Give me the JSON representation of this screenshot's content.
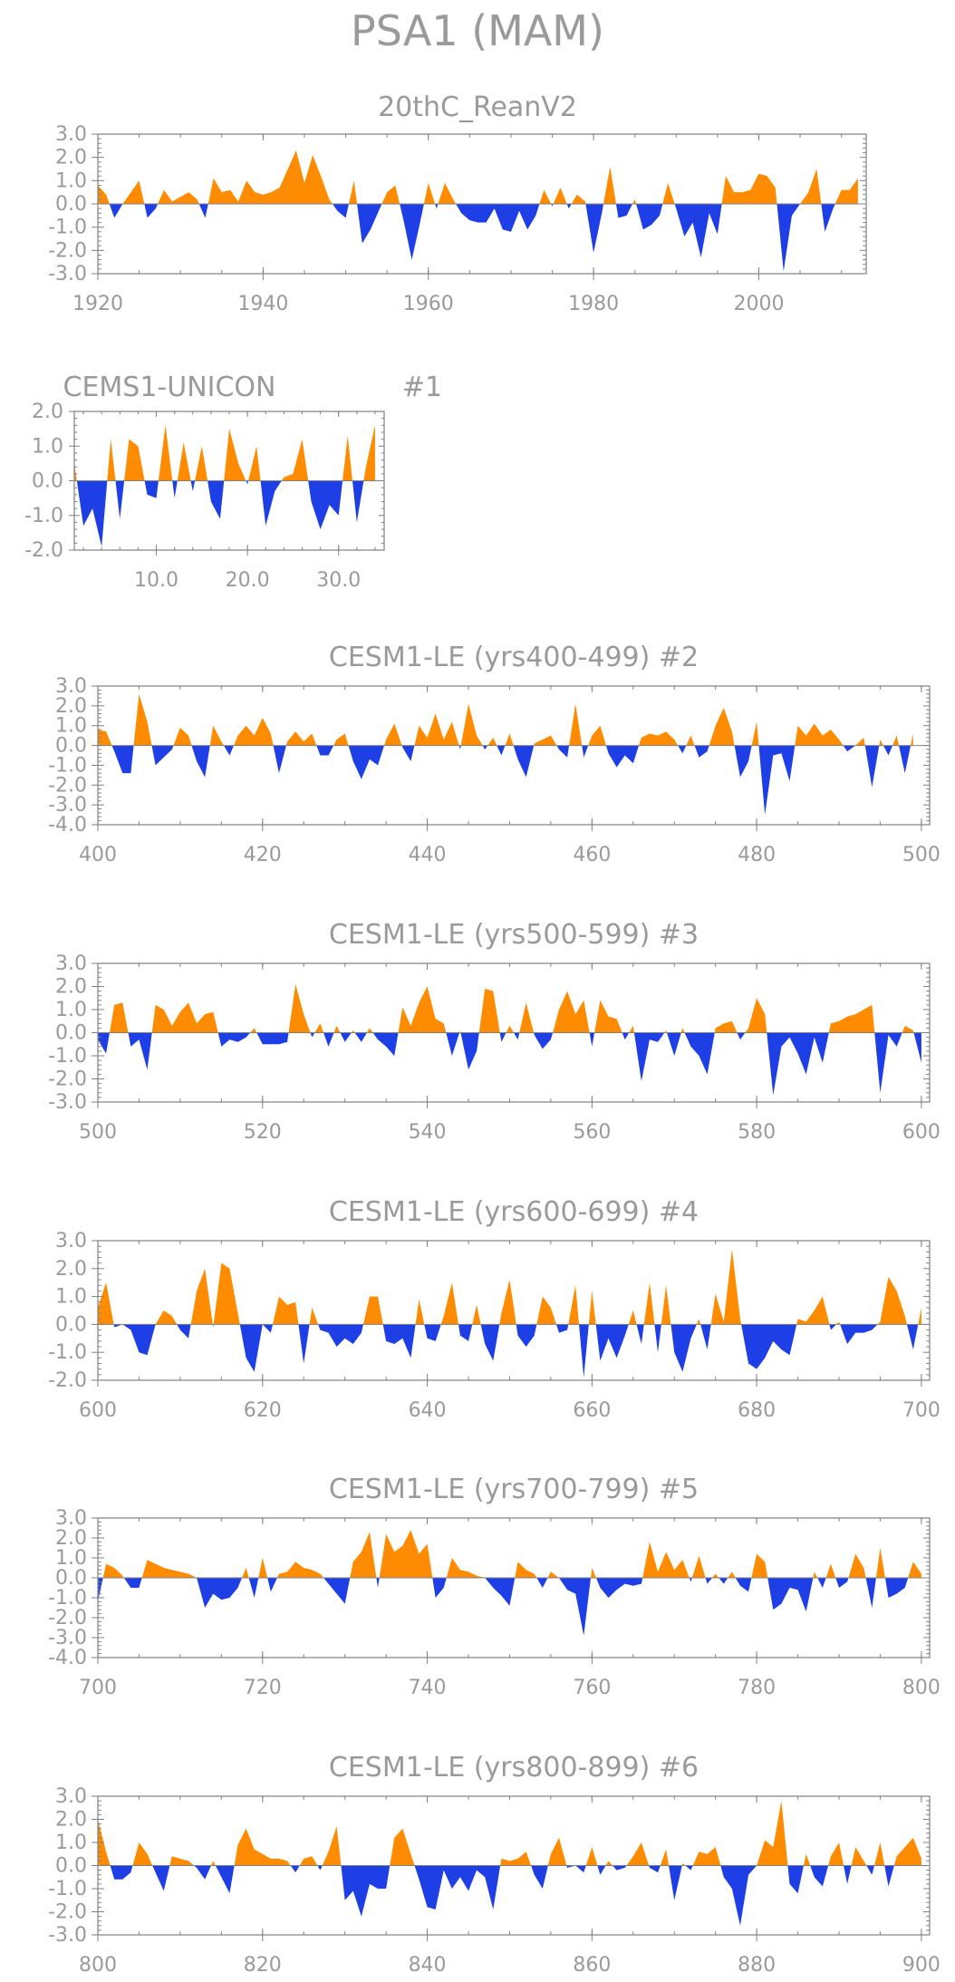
{
  "figure_title": "PSA1 (MAM)",
  "colors": {
    "positive": "#ff8c00",
    "negative": "#1e3ee6",
    "text": "#9a9a9a",
    "axis": "#808080"
  },
  "chart_data": [
    {
      "type": "area",
      "title": "20thC_ReanV2",
      "member_label": "",
      "xlim": [
        1920,
        2013
      ],
      "ylim": [
        -3,
        3
      ],
      "yticks": [
        3,
        2,
        1,
        0,
        -1,
        -2,
        -3
      ],
      "ytick_labels": [
        "3.0",
        "2.0",
        "1.0",
        "0.0",
        "-1.0",
        "-2.0",
        "-3.0"
      ],
      "xticks": [
        1920,
        1940,
        1960,
        1980,
        2000
      ],
      "xtick_labels": [
        "1920",
        "1940",
        "1960",
        "1980",
        "2000"
      ],
      "x_start": 1920,
      "values": [
        0.8,
        0.4,
        -0.6,
        0.0,
        0.5,
        1.0,
        -0.6,
        -0.2,
        0.6,
        0.1,
        0.3,
        0.5,
        0.2,
        -0.6,
        1.1,
        0.5,
        0.6,
        0.1,
        1.0,
        0.5,
        0.4,
        0.5,
        0.7,
        1.5,
        2.3,
        0.9,
        2.1,
        1.2,
        0.2,
        -0.3,
        -0.6,
        1.0,
        -1.7,
        -1.1,
        -0.3,
        0.5,
        0.8,
        -0.7,
        -2.4,
        -0.8,
        0.9,
        -0.2,
        0.9,
        0.2,
        -0.4,
        -0.7,
        -0.8,
        -0.8,
        -0.2,
        -1.1,
        -1.2,
        -0.3,
        -1.1,
        -0.5,
        0.6,
        -0.1,
        0.7,
        -0.2,
        0.4,
        0.1,
        -2.1,
        -0.4,
        1.6,
        -0.6,
        -0.5,
        0.2,
        -1.1,
        -0.9,
        -0.5,
        0.9,
        -0.2,
        -1.4,
        -0.8,
        -2.3,
        -0.4,
        -1.3,
        1.2,
        0.5,
        0.5,
        0.6,
        1.3,
        1.2,
        0.7,
        -2.9,
        -0.5,
        0.0,
        0.5,
        1.5,
        -1.2,
        -0.2,
        0.6,
        0.6,
        1.1
      ]
    },
    {
      "type": "area",
      "title": "CEMS1-UNICON",
      "member_label": "#1",
      "xlim": [
        1,
        35
      ],
      "ylim": [
        -2,
        2
      ],
      "yticks": [
        2,
        1,
        0,
        -1,
        -2
      ],
      "ytick_labels": [
        "2.0",
        "1.0",
        "0.0",
        "-1.0",
        "-2.0"
      ],
      "xticks": [
        10,
        20,
        30
      ],
      "xtick_labels": [
        "10.0",
        "20.0",
        "30.0"
      ],
      "x_start": 1,
      "values": [
        0.5,
        -1.3,
        -0.8,
        -1.9,
        1.2,
        -1.1,
        1.2,
        1.0,
        -0.4,
        -0.5,
        1.6,
        -0.5,
        1.1,
        -0.3,
        1.0,
        -0.6,
        -1.1,
        1.5,
        0.5,
        -0.1,
        1.0,
        -1.3,
        -0.3,
        0.1,
        0.2,
        1.2,
        -0.6,
        -1.4,
        -0.7,
        -1.0,
        1.3,
        -1.2,
        0.4,
        1.6
      ]
    },
    {
      "type": "area",
      "title": "CESM1-LE (yrs400-499)",
      "member_label": "#2",
      "xlim": [
        400,
        501
      ],
      "ylim": [
        -4,
        3
      ],
      "yticks": [
        3,
        2,
        1,
        0,
        -1,
        -2,
        -3,
        -4
      ],
      "ytick_labels": [
        "3.0",
        "2.0",
        "1.0",
        "0.0",
        "-1.0",
        "-2.0",
        "-3.0",
        "-4.0"
      ],
      "xticks": [
        400,
        420,
        440,
        460,
        480,
        500
      ],
      "xtick_labels": [
        "400",
        "420",
        "440",
        "460",
        "480",
        "500"
      ],
      "x_start": 400,
      "values": [
        0.8,
        0.7,
        -0.3,
        -1.4,
        -1.4,
        2.6,
        1.2,
        -1.0,
        -0.6,
        -0.2,
        0.9,
        0.5,
        -0.8,
        -1.6,
        1.0,
        0.2,
        -0.5,
        0.5,
        1.0,
        0.5,
        1.4,
        0.6,
        -1.4,
        0.2,
        0.7,
        0.2,
        0.6,
        -0.5,
        -0.5,
        0.3,
        0.6,
        -0.8,
        -1.7,
        -0.7,
        -1.0,
        0.3,
        1.1,
        -0.1,
        -0.8,
        1.0,
        0.4,
        1.6,
        0.3,
        1.2,
        -0.2,
        2.1,
        0.5,
        -0.2,
        0.4,
        -0.5,
        0.6,
        -0.7,
        -1.6,
        0.1,
        0.3,
        0.5,
        -0.2,
        -0.6,
        2.1,
        -0.6,
        0.5,
        1.0,
        -0.4,
        -1.1,
        -0.5,
        -0.9,
        0.4,
        0.6,
        0.5,
        0.7,
        0.3,
        -0.4,
        0.5,
        -0.6,
        -0.3,
        1.0,
        1.9,
        0.7,
        -1.6,
        -0.8,
        1.2,
        -3.5,
        -0.5,
        -0.4,
        -1.8,
        1.0,
        0.5,
        1.1,
        0.5,
        0.8,
        0.3,
        -0.3,
        0.0,
        0.4,
        -2.1,
        0.3,
        -0.5,
        0.5,
        -1.4,
        0.6
      ]
    },
    {
      "type": "area",
      "title": "CESM1-LE (yrs500-599)",
      "member_label": "#3",
      "xlim": [
        500,
        601
      ],
      "ylim": [
        -3,
        3
      ],
      "yticks": [
        3,
        2,
        1,
        0,
        -1,
        -2,
        -3
      ],
      "ytick_labels": [
        "3.0",
        "2.0",
        "1.0",
        "0.0",
        "-1.0",
        "-2.0",
        "-3.0"
      ],
      "xticks": [
        500,
        520,
        540,
        560,
        580,
        600
      ],
      "xtick_labels": [
        "500",
        "520",
        "540",
        "560",
        "580",
        "600"
      ],
      "x_start": 500,
      "values": [
        -0.3,
        -0.9,
        1.2,
        1.3,
        -0.6,
        -0.3,
        -1.6,
        1.2,
        1.0,
        0.3,
        0.9,
        1.3,
        0.4,
        0.8,
        0.9,
        -0.6,
        -0.3,
        -0.4,
        -0.2,
        0.2,
        -0.5,
        -0.5,
        -0.5,
        -0.4,
        2.1,
        0.8,
        -0.2,
        0.4,
        -0.6,
        0.3,
        -0.4,
        0.1,
        -0.4,
        0.2,
        -0.3,
        -0.6,
        -1.0,
        1.1,
        0.3,
        1.3,
        2.0,
        0.6,
        0.4,
        -1.0,
        0.1,
        -1.6,
        -0.8,
        1.9,
        1.8,
        -0.4,
        0.3,
        -0.3,
        1.3,
        -0.1,
        -0.7,
        -0.3,
        1.0,
        1.8,
        0.8,
        1.4,
        -0.6,
        1.4,
        0.7,
        0.6,
        -0.3,
        0.3,
        -2.1,
        -0.3,
        -0.4,
        0.1,
        -1.0,
        0.2,
        -0.6,
        -1.0,
        -1.8,
        0.2,
        0.4,
        0.5,
        -0.3,
        0.2,
        1.5,
        0.8,
        -2.7,
        -0.6,
        -0.2,
        -0.9,
        -1.8,
        -0.2,
        -1.3,
        0.4,
        0.5,
        0.7,
        0.8,
        1.0,
        1.2,
        -2.6,
        -0.1,
        -0.6,
        0.3,
        0.1,
        -1.3
      ]
    },
    {
      "type": "area",
      "title": "CESM1-LE (yrs600-699)",
      "member_label": "#4",
      "xlim": [
        600,
        701
      ],
      "ylim": [
        -2,
        3
      ],
      "yticks": [
        3,
        2,
        1,
        0,
        -1,
        -2
      ],
      "ytick_labels": [
        "3.0",
        "2.0",
        "1.0",
        "0.0",
        "-1.0",
        "-2.0"
      ],
      "xticks": [
        600,
        620,
        640,
        660,
        680,
        700
      ],
      "xtick_labels": [
        "600",
        "620",
        "640",
        "660",
        "680",
        "700"
      ],
      "x_start": 600,
      "values": [
        0.6,
        1.5,
        -0.1,
        0.0,
        -0.2,
        -1.0,
        -1.1,
        0.0,
        0.5,
        0.3,
        -0.2,
        -0.5,
        1.2,
        2.0,
        -0.1,
        2.2,
        2.0,
        0.4,
        -1.2,
        -1.7,
        0.0,
        -0.3,
        1.0,
        0.7,
        0.8,
        -1.4,
        0.6,
        -0.2,
        -0.3,
        -0.8,
        -0.5,
        -0.7,
        -0.3,
        1.0,
        1.0,
        -0.6,
        -0.7,
        -0.5,
        -1.2,
        0.9,
        -0.5,
        -0.6,
        0.3,
        1.5,
        -0.4,
        -0.6,
        0.7,
        -0.7,
        -1.3,
        0.4,
        1.6,
        -0.4,
        -0.8,
        -0.4,
        1.0,
        0.6,
        -0.3,
        -0.2,
        1.4,
        -1.9,
        1.2,
        -1.3,
        -0.5,
        -1.2,
        -0.4,
        0.5,
        -0.7,
        1.5,
        -1.0,
        1.4,
        -1.0,
        -1.7,
        -0.5,
        0.2,
        -0.9,
        1.1,
        0.1,
        2.7,
        0.2,
        -1.4,
        -1.6,
        -1.2,
        -0.6,
        -0.9,
        -1.1,
        0.2,
        0.1,
        0.5,
        1.0,
        -0.2,
        0.1,
        -0.7,
        -0.3,
        -0.3,
        -0.2,
        0.1,
        1.7,
        1.2,
        0.3,
        -0.9,
        0.6
      ]
    },
    {
      "type": "area",
      "title": "CESM1-LE (yrs700-799)",
      "member_label": "#5",
      "xlim": [
        700,
        801
      ],
      "ylim": [
        -4,
        3
      ],
      "yticks": [
        3,
        2,
        1,
        0,
        -1,
        -2,
        -3,
        -4
      ],
      "ytick_labels": [
        "3.0",
        "2.0",
        "1.0",
        "0.0",
        "-1.0",
        "-2.0",
        "-3.0",
        "-4.0"
      ],
      "xticks": [
        700,
        720,
        740,
        760,
        780,
        800
      ],
      "xtick_labels": [
        "700",
        "720",
        "740",
        "760",
        "780",
        "800"
      ],
      "x_start": 700,
      "values": [
        -1.2,
        0.7,
        0.5,
        0.1,
        -0.5,
        -0.5,
        0.9,
        0.7,
        0.5,
        0.4,
        0.3,
        0.2,
        0.0,
        -1.5,
        -0.8,
        -1.1,
        -1.0,
        -0.5,
        0.5,
        -1.0,
        1.0,
        -0.7,
        0.2,
        0.3,
        0.8,
        0.5,
        0.4,
        0.2,
        -0.3,
        -0.8,
        -1.3,
        0.8,
        1.3,
        2.3,
        -0.5,
        2.2,
        1.3,
        1.6,
        2.4,
        1.2,
        1.7,
        -1.0,
        -0.5,
        1.0,
        0.4,
        0.3,
        0.1,
        0.0,
        -0.5,
        -0.9,
        -1.4,
        0.8,
        0.4,
        0.2,
        -0.5,
        0.3,
        0.0,
        -0.6,
        -0.8,
        -2.9,
        0.5,
        -0.5,
        -1.0,
        -0.6,
        -0.3,
        -0.4,
        -0.3,
        1.8,
        0.3,
        1.3,
        0.4,
        0.9,
        -0.2,
        1.1,
        -0.3,
        0.2,
        -0.3,
        0.3,
        -0.4,
        -0.7,
        1.2,
        0.8,
        -1.6,
        -1.3,
        -0.5,
        -0.6,
        -1.7,
        0.3,
        -0.5,
        0.7,
        -0.5,
        -0.2,
        1.2,
        0.5,
        -1.5,
        1.5,
        -1.0,
        -0.8,
        -0.5,
        0.8,
        0.2
      ]
    },
    {
      "type": "area",
      "title": "CESM1-LE (yrs800-899)",
      "member_label": "#6",
      "xlim": [
        800,
        901
      ],
      "ylim": [
        -3,
        3
      ],
      "yticks": [
        3,
        2,
        1,
        0,
        -1,
        -2,
        -3
      ],
      "ytick_labels": [
        "3.0",
        "2.0",
        "1.0",
        "0.0",
        "-1.0",
        "-2.0",
        "-3.0"
      ],
      "xticks": [
        800,
        820,
        840,
        860,
        880,
        900
      ],
      "xtick_labels": [
        "800",
        "820",
        "840",
        "860",
        "880",
        "900"
      ],
      "x_start": 800,
      "values": [
        2.0,
        0.6,
        -0.6,
        -0.6,
        -0.3,
        1.0,
        0.5,
        -0.3,
        -1.1,
        0.4,
        0.3,
        0.2,
        -0.1,
        -0.6,
        0.2,
        -0.5,
        -1.2,
        0.9,
        1.6,
        0.7,
        0.5,
        0.3,
        0.3,
        0.2,
        -0.3,
        0.3,
        0.4,
        -0.2,
        0.6,
        1.7,
        -1.5,
        -1.1,
        -2.2,
        -0.8,
        -1.0,
        -1.0,
        1.2,
        1.6,
        0.5,
        -0.6,
        -1.8,
        -1.9,
        -0.2,
        -1.0,
        -0.5,
        -1.1,
        -0.2,
        -0.5,
        -1.9,
        0.3,
        0.2,
        0.3,
        0.6,
        -0.4,
        -1.0,
        0.5,
        1.2,
        -0.1,
        0.0,
        -0.3,
        0.8,
        -0.4,
        0.2,
        -0.2,
        -0.1,
        0.4,
        1.0,
        -0.1,
        -0.3,
        0.7,
        -1.5,
        0.1,
        -0.2,
        0.6,
        0.5,
        0.8,
        -0.5,
        -1.0,
        -2.6,
        -0.4,
        0.0,
        1.1,
        0.8,
        2.8,
        -0.8,
        -1.2,
        0.5,
        -0.5,
        -0.9,
        0.4,
        1.0,
        -0.8,
        0.8,
        0.2,
        -0.4,
        1.0,
        -0.9,
        0.4,
        0.8,
        1.2,
        0.3
      ]
    }
  ]
}
